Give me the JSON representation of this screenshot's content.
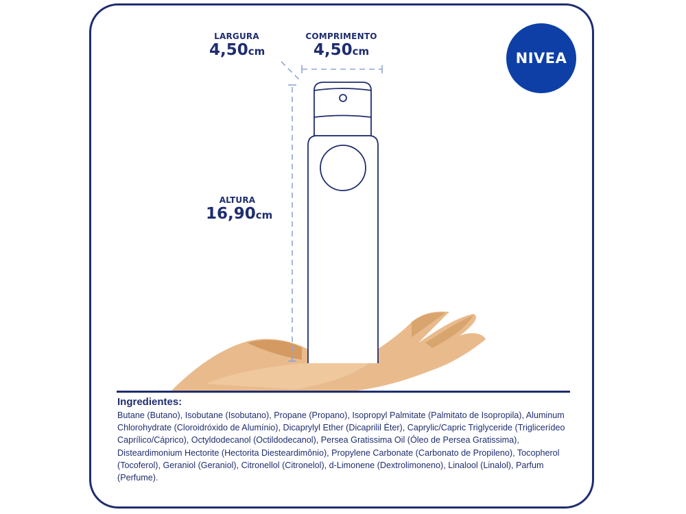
{
  "brand": {
    "logo_text": "NIVEA",
    "color": "#0d3fa6"
  },
  "dimensions": {
    "width": {
      "label": "LARGURA",
      "value": "4,50",
      "unit": "cm"
    },
    "length": {
      "label": "COMPRIMENTO",
      "value": "4,50",
      "unit": "cm"
    },
    "height": {
      "label": "ALTURA",
      "value": "16,90",
      "unit": "cm"
    }
  },
  "ingredients": {
    "title": "Ingredientes:",
    "text": "Butane (Butano), Isobutane (Isobutano), Propane (Propano), Isopropyl Palmitate (Palmitato de Isopropila), Aluminum Chlorohydrate (Cloroidróxido de Alumínio), Dicaprylyl Ether (Dicaprilil Éter), Caprylic/Capric Triglyceride (Triglicerídeo Caprílico/Cáprico), Octyldodecanol (Octildodecanol), Persea Gratissima Oil (Óleo de Persea Gratissima), Disteardimonium Hectorite (Hectorita Diesteardimônio), Propylene Carbonate (Carbonato de Propileno), Tocopherol (Tocoferol), Geraniol (Geraniol), Citronellol (Citronelol), d-Limonene (Dextrolimoneno), Linalool (Linalol), Parfum (Perfume)."
  },
  "colors": {
    "navy": "#1f2d6e",
    "skin": "#e9bb8c",
    "skin_shadow": "#d49a62",
    "dash": "#8fa5d6"
  }
}
